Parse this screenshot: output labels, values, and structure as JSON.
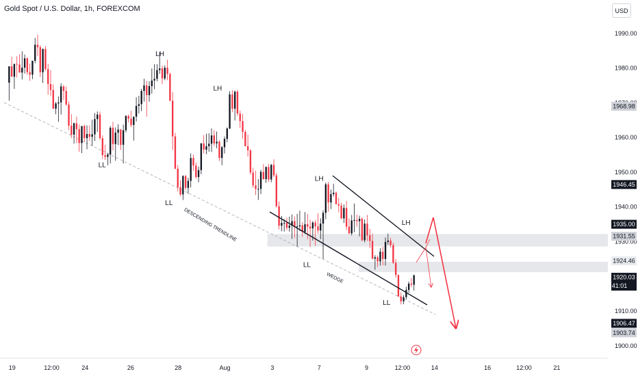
{
  "title": "Gold Spot / U.S. Dollar, 1h, FOREXCOM",
  "currency": "USD",
  "colors": {
    "up": "#131722",
    "down": "#f23645",
    "trendline": "#b2b5be",
    "zone": "#e6e7ea"
  },
  "chart_data": {
    "type": "candlestick",
    "title": "Gold Spot / U.S. Dollar, 1h, FOREXCOM",
    "ylim": [
      1897.6,
      1999.6
    ],
    "xlim": [
      0,
      100
    ],
    "y_ticks": [
      1900,
      1910,
      1920,
      1930,
      1940,
      1950,
      1960,
      1970,
      1980,
      1990
    ],
    "x_ticks": [
      {
        "x": 2,
        "label": "19"
      },
      {
        "x": 8.5,
        "label": "12:00"
      },
      {
        "x": 14,
        "label": "24"
      },
      {
        "x": 21.5,
        "label": "26"
      },
      {
        "x": 29.3,
        "label": "28"
      },
      {
        "x": 37,
        "label": "Aug"
      },
      {
        "x": 44.8,
        "label": "3"
      },
      {
        "x": 52.5,
        "label": "7"
      },
      {
        "x": 60.3,
        "label": "9"
      },
      {
        "x": 66.2,
        "label": "12:00"
      },
      {
        "x": 71.5,
        "label": "14"
      },
      {
        "x": 80.2,
        "label": "16"
      },
      {
        "x": 86.2,
        "label": "12:00"
      },
      {
        "x": 91.6,
        "label": "21"
      }
    ],
    "price_tags": [
      {
        "value": 1968.98,
        "label": "1968.98",
        "style": "gray"
      },
      {
        "value": 1946.45,
        "label": "1946.45",
        "style": "dark"
      },
      {
        "value": 1935.0,
        "label": "1935.00",
        "style": "dark"
      },
      {
        "value": 1931.55,
        "label": "1931.55",
        "style": "gray"
      },
      {
        "value": 1924.46,
        "label": "1924.46",
        "style": "light"
      },
      {
        "value": 1920.03,
        "label": "1920.03",
        "sublabel": "41:01",
        "style": "dark"
      },
      {
        "value": 1906.47,
        "label": "1906.47",
        "style": "dark"
      },
      {
        "value": 1903.74,
        "label": "1903.74",
        "style": "gray"
      }
    ],
    "zones": [
      {
        "y1": 1928.6,
        "y2": 1932.2,
        "x1": 44,
        "x2": 100
      },
      {
        "y1": 1921.2,
        "y2": 1924.2,
        "x1": 59,
        "x2": 100
      }
    ],
    "annotations": [
      {
        "text": "LH",
        "x": 26.3,
        "y": 1983.5
      },
      {
        "text": "LH",
        "x": 35.8,
        "y": 1973.5
      },
      {
        "text": "LH",
        "x": 52.5,
        "y": 1947.5
      },
      {
        "text": "LH",
        "x": 66.8,
        "y": 1934.8
      },
      {
        "text": "LL",
        "x": 16.8,
        "y": 1951.5
      },
      {
        "text": "LL",
        "x": 27.8,
        "y": 1940.5
      },
      {
        "text": "LL",
        "x": 50.5,
        "y": 1922.7
      },
      {
        "text": "LL",
        "x": 63.6,
        "y": 1911.8
      }
    ],
    "labels": [
      {
        "text": "DESCENDING TRENDLINE",
        "x": 34.5,
        "y": 1934.5,
        "angle": 31
      },
      {
        "text": "WEDGE",
        "x": 55,
        "y": 1919.2,
        "angle": 27
      }
    ],
    "candles": [
      [
        1975.8,
        1980.5,
        1970.6,
        1980.5
      ],
      [
        1980.5,
        1983.3,
        1978.3,
        1977.5
      ],
      [
        1977.5,
        1981.2,
        1974.0,
        1981.2
      ],
      [
        1981.2,
        1983.4,
        1977.3,
        1981.0
      ],
      [
        1981.0,
        1984.0,
        1978.7,
        1978.7
      ],
      [
        1978.7,
        1984.8,
        1976.7,
        1980.1
      ],
      [
        1980.1,
        1983.9,
        1978.4,
        1982.8
      ],
      [
        1982.8,
        1983.1,
        1978.0,
        1978.8
      ],
      [
        1978.8,
        1981.3,
        1976.3,
        1978.1
      ],
      [
        1978.1,
        1982.1,
        1976.8,
        1982.1
      ],
      [
        1982.1,
        1988.7,
        1981.4,
        1986.7
      ],
      [
        1986.7,
        1989.6,
        1983.5,
        1986.0
      ],
      [
        1986.0,
        1986.6,
        1977.4,
        1978.8
      ],
      [
        1978.8,
        1985.6,
        1975.7,
        1985.5
      ],
      [
        1985.5,
        1986.3,
        1979.2,
        1979.7
      ],
      [
        1979.7,
        1981.2,
        1972.3,
        1975.4
      ],
      [
        1975.4,
        1979.4,
        1971.9,
        1973.7
      ],
      [
        1973.7,
        1975.3,
        1968.3,
        1968.3
      ],
      [
        1968.3,
        1970.2,
        1966.7,
        1969.8
      ],
      [
        1969.8,
        1971.8,
        1964.5,
        1970.1
      ],
      [
        1970.1,
        1975.6,
        1966.6,
        1974.7
      ],
      [
        1974.7,
        1975.1,
        1970.8,
        1973.4
      ],
      [
        1973.4,
        1974.7,
        1969.1,
        1969.5
      ],
      [
        1969.5,
        1970.4,
        1962.1,
        1963.4
      ],
      [
        1963.4,
        1966.7,
        1959.8,
        1960.8
      ],
      [
        1960.8,
        1964.3,
        1958.2,
        1964.1
      ],
      [
        1964.1,
        1966.0,
        1958.4,
        1962.4
      ],
      [
        1962.4,
        1963.8,
        1955.9,
        1958.4
      ],
      [
        1958.4,
        1963.3,
        1955.5,
        1963.3
      ],
      [
        1963.3,
        1963.7,
        1958.7,
        1959.8
      ],
      [
        1959.8,
        1963.5,
        1956.6,
        1961.0
      ],
      [
        1961.0,
        1963.5,
        1959.0,
        1960.2
      ],
      [
        1960.2,
        1965.1,
        1957.6,
        1960.9
      ],
      [
        1960.9,
        1967.0,
        1959.0,
        1965.3
      ],
      [
        1965.3,
        1967.5,
        1961.6,
        1966.6
      ],
      [
        1966.6,
        1967.4,
        1959.3,
        1959.8
      ],
      [
        1959.8,
        1960.6,
        1953.8,
        1954.9
      ],
      [
        1954.9,
        1957.9,
        1953.5,
        1954.4
      ],
      [
        1954.4,
        1955.6,
        1952.0,
        1955.1
      ],
      [
        1955.1,
        1963.3,
        1952.5,
        1962.8
      ],
      [
        1962.8,
        1964.5,
        1956.3,
        1958.1
      ],
      [
        1958.1,
        1962.9,
        1953.3,
        1961.4
      ],
      [
        1961.4,
        1963.8,
        1957.8,
        1962.3
      ],
      [
        1962.3,
        1962.4,
        1956.4,
        1957.9
      ],
      [
        1957.9,
        1963.7,
        1952.5,
        1962.1
      ],
      [
        1962.1,
        1966.4,
        1961.5,
        1966.2
      ],
      [
        1966.2,
        1966.6,
        1964.3,
        1965.4
      ],
      [
        1965.4,
        1967.7,
        1963.0,
        1963.6
      ],
      [
        1963.6,
        1966.0,
        1959.1,
        1966.0
      ],
      [
        1966.0,
        1971.6,
        1964.6,
        1969.1
      ],
      [
        1969.1,
        1972.0,
        1966.9,
        1969.6
      ],
      [
        1969.6,
        1974.0,
        1967.6,
        1973.4
      ],
      [
        1973.4,
        1976.9,
        1970.3,
        1975.0
      ],
      [
        1975.0,
        1976.3,
        1966.0,
        1972.2
      ],
      [
        1972.2,
        1976.2,
        1970.3,
        1974.8
      ],
      [
        1974.8,
        1979.9,
        1972.6,
        1976.4
      ],
      [
        1976.4,
        1981.1,
        1973.9,
        1976.9
      ],
      [
        1976.9,
        1981.1,
        1976.2,
        1979.4
      ],
      [
        1979.4,
        1984.6,
        1978.3,
        1979.9
      ],
      [
        1979.9,
        1980.7,
        1975.4,
        1977.0
      ],
      [
        1977.0,
        1980.8,
        1976.5,
        1980.1
      ],
      [
        1980.1,
        1982.4,
        1976.5,
        1978.3
      ],
      [
        1978.3,
        1978.7,
        1970.4,
        1970.6
      ],
      [
        1970.6,
        1973.1,
        1956.4,
        1960.3
      ],
      [
        1960.3,
        1961.3,
        1950.9,
        1951.0
      ],
      [
        1951.0,
        1952.1,
        1944.5,
        1945.7
      ],
      [
        1945.7,
        1947.7,
        1943.1,
        1943.6
      ],
      [
        1943.6,
        1949.1,
        1942.0,
        1948.9
      ],
      [
        1948.9,
        1949.2,
        1944.9,
        1945.5
      ],
      [
        1945.5,
        1948.4,
        1943.8,
        1947.5
      ],
      [
        1947.5,
        1955.4,
        1945.6,
        1954.1
      ],
      [
        1954.1,
        1955.1,
        1950.4,
        1951.9
      ],
      [
        1951.9,
        1952.8,
        1948.1,
        1948.6
      ],
      [
        1948.6,
        1951.6,
        1947.1,
        1950.6
      ],
      [
        1950.6,
        1958.4,
        1949.4,
        1958.3
      ],
      [
        1958.3,
        1960.7,
        1955.4,
        1956.5
      ],
      [
        1956.5,
        1961.1,
        1955.2,
        1957.5
      ],
      [
        1957.5,
        1961.2,
        1955.9,
        1958.2
      ],
      [
        1958.2,
        1962.6,
        1955.8,
        1960.6
      ],
      [
        1960.6,
        1962.1,
        1957.5,
        1958.3
      ],
      [
        1958.3,
        1961.7,
        1956.9,
        1958.8
      ],
      [
        1958.8,
        1959.2,
        1953.2,
        1954.1
      ],
      [
        1954.1,
        1957.6,
        1952.0,
        1957.2
      ],
      [
        1957.2,
        1960.3,
        1955.4,
        1959.6
      ],
      [
        1959.6,
        1962.9,
        1958.6,
        1962.6
      ],
      [
        1962.6,
        1973.3,
        1962.4,
        1972.4
      ],
      [
        1972.4,
        1973.6,
        1967.3,
        1968.3
      ],
      [
        1968.3,
        1973.5,
        1964.9,
        1973.2
      ],
      [
        1973.2,
        1973.7,
        1966.2,
        1966.9
      ],
      [
        1966.9,
        1967.8,
        1962.7,
        1964.7
      ],
      [
        1964.7,
        1966.8,
        1959.6,
        1961.6
      ],
      [
        1961.6,
        1962.2,
        1957.4,
        1957.5
      ],
      [
        1957.5,
        1960.8,
        1954.5,
        1956.3
      ],
      [
        1956.3,
        1956.6,
        1949.3,
        1949.9
      ],
      [
        1949.9,
        1951.3,
        1945.5,
        1946.2
      ],
      [
        1946.2,
        1950.4,
        1943.4,
        1945.2
      ],
      [
        1945.2,
        1948.0,
        1942.0,
        1945.2
      ],
      [
        1945.2,
        1950.7,
        1943.7,
        1950.1
      ],
      [
        1950.1,
        1952.3,
        1947.9,
        1948.0
      ],
      [
        1948.0,
        1951.7,
        1946.9,
        1951.5
      ],
      [
        1951.5,
        1952.4,
        1947.2,
        1947.9
      ],
      [
        1947.9,
        1952.4,
        1947.1,
        1952.1
      ],
      [
        1952.1,
        1953.7,
        1948.6,
        1949.1
      ],
      [
        1949.1,
        1949.8,
        1939.8,
        1940.2
      ],
      [
        1940.2,
        1941.6,
        1933.5,
        1934.6
      ],
      [
        1934.6,
        1937.4,
        1933.0,
        1935.4
      ],
      [
        1935.4,
        1936.5,
        1932.9,
        1935.4
      ],
      [
        1935.4,
        1936.9,
        1933.3,
        1934.0
      ],
      [
        1934.0,
        1937.2,
        1932.9,
        1934.6
      ],
      [
        1934.6,
        1937.8,
        1930.8,
        1935.9
      ],
      [
        1935.9,
        1937.3,
        1931.1,
        1934.2
      ],
      [
        1934.2,
        1938.0,
        1928.6,
        1934.4
      ],
      [
        1934.4,
        1938.9,
        1933.0,
        1934.7
      ],
      [
        1934.7,
        1935.6,
        1931.4,
        1932.8
      ],
      [
        1932.8,
        1938.5,
        1932.2,
        1935.0
      ],
      [
        1935.0,
        1938.0,
        1930.7,
        1934.3
      ],
      [
        1934.3,
        1936.3,
        1928.5,
        1933.8
      ],
      [
        1933.8,
        1935.9,
        1930.3,
        1935.5
      ],
      [
        1935.5,
        1936.2,
        1928.8,
        1934.4
      ],
      [
        1934.4,
        1938.2,
        1932.3,
        1933.2
      ],
      [
        1933.2,
        1936.7,
        1930.7,
        1935.2
      ],
      [
        1935.2,
        1939.0,
        1925.0,
        1938.3
      ],
      [
        1938.3,
        1947.0,
        1936.5,
        1946.5
      ],
      [
        1946.5,
        1947.2,
        1938.6,
        1941.3
      ],
      [
        1941.3,
        1945.0,
        1939.4,
        1943.7
      ],
      [
        1943.7,
        1946.7,
        1943.0,
        1944.1
      ],
      [
        1944.1,
        1944.4,
        1940.7,
        1940.8
      ],
      [
        1940.8,
        1942.6,
        1938.4,
        1940.4
      ],
      [
        1940.4,
        1941.2,
        1936.5,
        1936.7
      ],
      [
        1936.7,
        1940.7,
        1935.4,
        1939.7
      ],
      [
        1939.7,
        1941.7,
        1933.3,
        1934.3
      ],
      [
        1934.3,
        1936.7,
        1932.1,
        1932.4
      ],
      [
        1932.4,
        1937.7,
        1931.8,
        1936.1
      ],
      [
        1936.1,
        1941.0,
        1932.7,
        1936.2
      ],
      [
        1936.2,
        1937.8,
        1934.3,
        1935.9
      ],
      [
        1935.9,
        1937.5,
        1931.5,
        1936.6
      ],
      [
        1936.6,
        1937.0,
        1930.1,
        1930.4
      ],
      [
        1930.4,
        1936.4,
        1929.8,
        1935.2
      ],
      [
        1935.2,
        1937.7,
        1930.2,
        1931.8
      ],
      [
        1931.8,
        1933.7,
        1928.1,
        1930.2
      ],
      [
        1930.2,
        1932.3,
        1924.9,
        1925.1
      ],
      [
        1925.1,
        1926.1,
        1921.9,
        1925.5
      ],
      [
        1925.5,
        1926.0,
        1922.7,
        1924.3
      ],
      [
        1924.3,
        1928.1,
        1923.1,
        1927.1
      ],
      [
        1927.1,
        1928.5,
        1923.2,
        1925.0
      ],
      [
        1925.0,
        1931.2,
        1923.1,
        1929.9
      ],
      [
        1929.9,
        1932.3,
        1929.1,
        1930.3
      ],
      [
        1930.3,
        1931.1,
        1928.3,
        1929.0
      ],
      [
        1929.0,
        1929.7,
        1923.6,
        1923.9
      ],
      [
        1923.9,
        1925.0,
        1919.6,
        1920.4
      ],
      [
        1920.4,
        1920.5,
        1914.1,
        1914.2
      ],
      [
        1914.2,
        1915.4,
        1911.9,
        1912.8
      ],
      [
        1912.8,
        1914.6,
        1912.0,
        1914.0
      ],
      [
        1914.0,
        1917.0,
        1913.4,
        1916.1
      ],
      [
        1916.1,
        1918.5,
        1915.3,
        1917.9
      ],
      [
        1917.9,
        1919.5,
        1916.9,
        1917.6
      ],
      [
        1917.6,
        1920.5,
        1915.9,
        1920.3
      ]
    ]
  }
}
